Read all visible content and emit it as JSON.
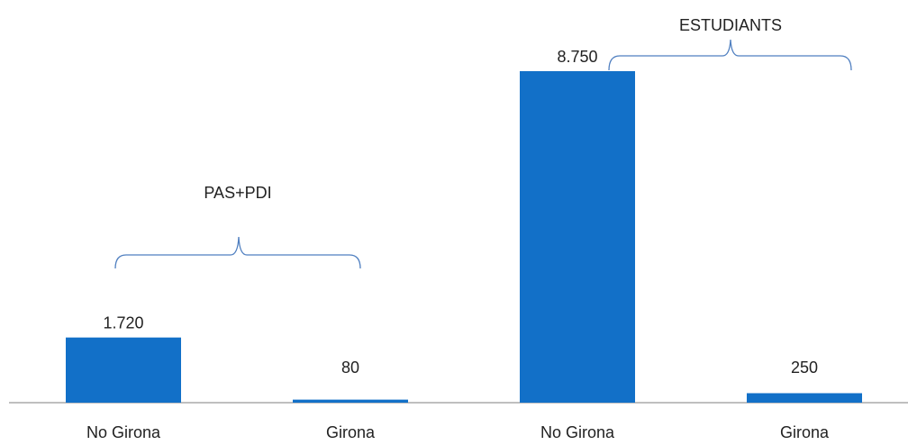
{
  "chart_data": {
    "type": "bar",
    "categories": [
      "No Girona",
      "Girona",
      "No Girona",
      "Girona"
    ],
    "values": [
      1720,
      80,
      8750,
      250
    ],
    "value_labels": [
      "1.720",
      "80",
      "8.750",
      "250"
    ],
    "color": "#1270c8",
    "annotations": [
      "PAS+PDI",
      "ESTUDIANTS"
    ]
  }
}
